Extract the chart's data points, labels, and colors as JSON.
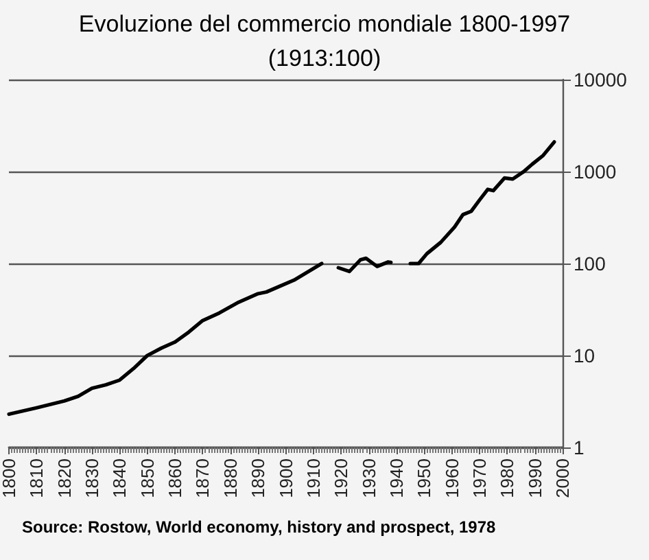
{
  "chart_data": {
    "type": "line",
    "title": "Evoluzione del commercio mondiale 1800-1997",
    "subtitle": "(1913:100)",
    "annotations": [
      "Source: Rostow, World economy, history and prospect, 1978"
    ],
    "x": [
      1800,
      1810,
      1820,
      1825,
      1830,
      1835,
      1840,
      1845,
      1850,
      1855,
      1860,
      1865,
      1870,
      1876,
      1883,
      1890,
      1893,
      1903,
      1913,
      1916,
      1919,
      1923,
      1927,
      1929,
      1933,
      1937,
      1938,
      1942,
      1945,
      1948,
      1951,
      1956,
      1961,
      1964,
      1967,
      1970,
      1973,
      1975,
      1979,
      1982,
      1986,
      1989,
      1993,
      1997
    ],
    "values": [
      2.3,
      2.7,
      3.2,
      3.6,
      4.4,
      4.8,
      5.4,
      7.2,
      10,
      12,
      14,
      18,
      24,
      29,
      38,
      47,
      49,
      66,
      100,
      null,
      90,
      82,
      110,
      114,
      93,
      104,
      103,
      null,
      100,
      100,
      128,
      170,
      250,
      340,
      370,
      490,
      640,
      620,
      850,
      830,
      1000,
      1200,
      1500,
      2100
    ],
    "color": "#000000",
    "xlim": [
      1800,
      2000
    ],
    "xticks": [
      1800,
      1810,
      1820,
      1830,
      1840,
      1850,
      1860,
      1870,
      1880,
      1890,
      1900,
      1910,
      1920,
      1930,
      1940,
      1950,
      1960,
      1970,
      1980,
      1990,
      2000
    ],
    "ylim": [
      1,
      10000
    ],
    "yticks": [
      1,
      10,
      100,
      1000,
      10000
    ],
    "log": "y",
    "grid": "y",
    "marker": "none",
    "line_style": "solid"
  }
}
